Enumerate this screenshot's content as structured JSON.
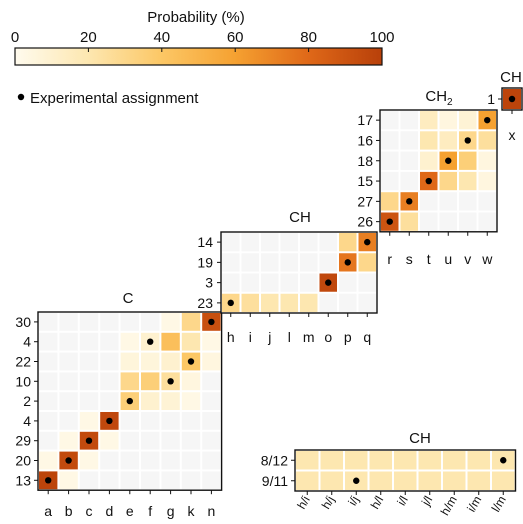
{
  "colorbar": {
    "title": "Probability (%)",
    "ticks": [
      0,
      20,
      40,
      60,
      80,
      100
    ],
    "colors": [
      "#fffbee",
      "#fde7b0",
      "#fcc765",
      "#f5a131",
      "#df6818",
      "#b8400a"
    ]
  },
  "legend": {
    "label": "Experimental assignment"
  },
  "chart_data": [
    {
      "type": "heatmap",
      "title": "C",
      "columns": [
        "a",
        "b",
        "c",
        "d",
        "e",
        "f",
        "g",
        "k",
        "n"
      ],
      "rows": [
        "13",
        "20",
        "29",
        "4",
        "2",
        "10",
        "22",
        "4",
        "30"
      ],
      "values": [
        [
          98,
          3,
          0,
          0,
          0,
          0,
          0,
          0,
          0
        ],
        [
          3,
          95,
          3,
          0,
          0,
          0,
          0,
          0,
          0
        ],
        [
          0,
          3,
          95,
          3,
          0,
          0,
          0,
          0,
          0
        ],
        [
          0,
          0,
          3,
          96,
          0,
          0,
          0,
          0,
          0
        ],
        [
          0,
          0,
          0,
          0,
          35,
          10,
          8,
          3,
          0
        ],
        [
          0,
          0,
          0,
          0,
          30,
          35,
          25,
          5,
          0
        ],
        [
          0,
          0,
          0,
          0,
          6,
          6,
          10,
          40,
          5
        ],
        [
          0,
          0,
          0,
          0,
          3,
          10,
          44,
          20,
          3
        ],
        [
          0,
          0,
          0,
          0,
          0,
          0,
          3,
          30,
          92
        ]
      ],
      "experimental": [
        [
          0,
          0
        ],
        [
          1,
          1
        ],
        [
          2,
          2
        ],
        [
          3,
          3
        ],
        [
          4,
          4
        ],
        [
          5,
          6
        ],
        [
          6,
          7
        ],
        [
          7,
          5
        ],
        [
          8,
          8
        ]
      ]
    },
    {
      "type": "heatmap",
      "title": "CH",
      "columns": [
        "h",
        "i",
        "j",
        "l",
        "m",
        "o",
        "p",
        "q"
      ],
      "rows": [
        "23",
        "3",
        "19",
        "14"
      ],
      "values": [
        [
          30,
          25,
          20,
          20,
          20,
          0,
          0,
          0
        ],
        [
          0,
          0,
          0,
          0,
          0,
          96,
          0,
          0
        ],
        [
          0,
          0,
          0,
          0,
          0,
          0,
          75,
          30
        ],
        [
          0,
          0,
          0,
          0,
          0,
          0,
          30,
          72
        ]
      ],
      "experimental": [
        [
          0,
          0
        ],
        [
          1,
          5
        ],
        [
          2,
          6
        ],
        [
          3,
          7
        ]
      ]
    },
    {
      "type": "heatmap",
      "title": "CH",
      "subscript": "2",
      "columns": [
        "r",
        "s",
        "t",
        "u",
        "v",
        "w"
      ],
      "rows": [
        "26",
        "27",
        "15",
        "18",
        "16",
        "17"
      ],
      "values": [
        [
          90,
          25,
          0,
          0,
          0,
          0
        ],
        [
          30,
          72,
          0,
          0,
          0,
          0
        ],
        [
          0,
          0,
          80,
          30,
          20,
          5
        ],
        [
          0,
          0,
          10,
          60,
          35,
          5
        ],
        [
          0,
          0,
          20,
          15,
          30,
          25
        ],
        [
          0,
          0,
          15,
          5,
          8,
          60
        ]
      ],
      "experimental": [
        [
          0,
          0
        ],
        [
          1,
          1
        ],
        [
          2,
          2
        ],
        [
          3,
          3
        ],
        [
          4,
          4
        ],
        [
          5,
          5
        ]
      ]
    },
    {
      "type": "heatmap",
      "title": "CH",
      "columns": [
        "x"
      ],
      "rows": [
        "1"
      ],
      "values": [
        [
          98
        ]
      ],
      "experimental": [
        [
          0,
          0
        ]
      ]
    },
    {
      "type": "heatmap",
      "title": "CH",
      "columns": [
        "h/i",
        "h/j",
        "i/j",
        "h/l",
        "i/l",
        "j/l",
        "h/m",
        "i/m",
        "l/m"
      ],
      "rows": [
        "9/11",
        "8/12"
      ],
      "values": [
        [
          20,
          20,
          20,
          20,
          20,
          20,
          20,
          20,
          20
        ],
        [
          20,
          20,
          20,
          20,
          20,
          20,
          20,
          20,
          20
        ]
      ],
      "experimental": [
        [
          0,
          2
        ],
        [
          1,
          8
        ]
      ]
    }
  ]
}
